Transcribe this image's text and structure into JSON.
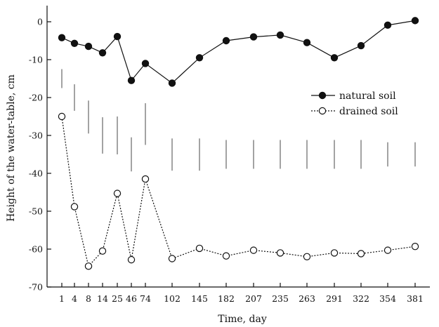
{
  "chart_data": {
    "type": "line",
    "xlabel": "Time, day",
    "ylabel": "Height of the water-table, cm",
    "ylim": [
      -70,
      5
    ],
    "y_ticks": [
      0,
      -10,
      -20,
      -30,
      -40,
      -50,
      -60,
      -70
    ],
    "x": [
      "1",
      "4",
      "8",
      "14",
      "25",
      "46",
      "74",
      "102",
      "145",
      "182",
      "207",
      "235",
      "263",
      "291",
      "322",
      "354",
      "381"
    ],
    "legend_position": "right",
    "grid": false,
    "series": [
      {
        "name": "natural soil",
        "marker": "filled-circle",
        "line": "solid",
        "values": [
          -4.2,
          -5.7,
          -6.5,
          -8.2,
          -3.9,
          -15.5,
          -11.0,
          -16.2,
          -9.5,
          -5.0,
          -4.0,
          -3.5,
          -5.5,
          -9.5,
          -6.3,
          -0.9,
          0.3
        ]
      },
      {
        "name": "drained soil",
        "marker": "open-circle",
        "line": "dotted",
        "values": [
          -25.0,
          -48.8,
          -64.5,
          -60.5,
          -45.3,
          -62.8,
          -41.5,
          -62.5,
          -59.8,
          -61.8,
          -60.3,
          -61.0,
          -62.0,
          -61.0,
          -61.2,
          -60.3,
          -59.3
        ]
      }
    ],
    "range_bars": [
      {
        "x": "1",
        "low": -17.5,
        "high": -12.5
      },
      {
        "x": "4",
        "low": -23.5,
        "high": -16.5
      },
      {
        "x": "8",
        "low": -29.5,
        "high": -20.8
      },
      {
        "x": "14",
        "low": -34.8,
        "high": -25.2
      },
      {
        "x": "25",
        "low": -35.0,
        "high": -25.0
      },
      {
        "x": "46",
        "low": -39.5,
        "high": -30.5
      },
      {
        "x": "74",
        "low": -32.5,
        "high": -21.5
      },
      {
        "x": "102",
        "low": -39.3,
        "high": -30.8
      },
      {
        "x": "145",
        "low": -39.3,
        "high": -30.8
      },
      {
        "x": "182",
        "low": -38.8,
        "high": -31.2
      },
      {
        "x": "207",
        "low": -38.8,
        "high": -31.2
      },
      {
        "x": "235",
        "low": -38.8,
        "high": -31.2
      },
      {
        "x": "263",
        "low": -38.8,
        "high": -31.2
      },
      {
        "x": "291",
        "low": -38.8,
        "high": -31.2
      },
      {
        "x": "322",
        "low": -38.8,
        "high": -31.2
      },
      {
        "x": "354",
        "low": -38.2,
        "high": -31.8
      },
      {
        "x": "381",
        "low": -38.2,
        "high": -31.8
      }
    ],
    "colors": {
      "axis": "#111111",
      "line": "#111111",
      "range_bar": "#8c8c8c",
      "open_marker_fill": "#ffffff"
    }
  }
}
